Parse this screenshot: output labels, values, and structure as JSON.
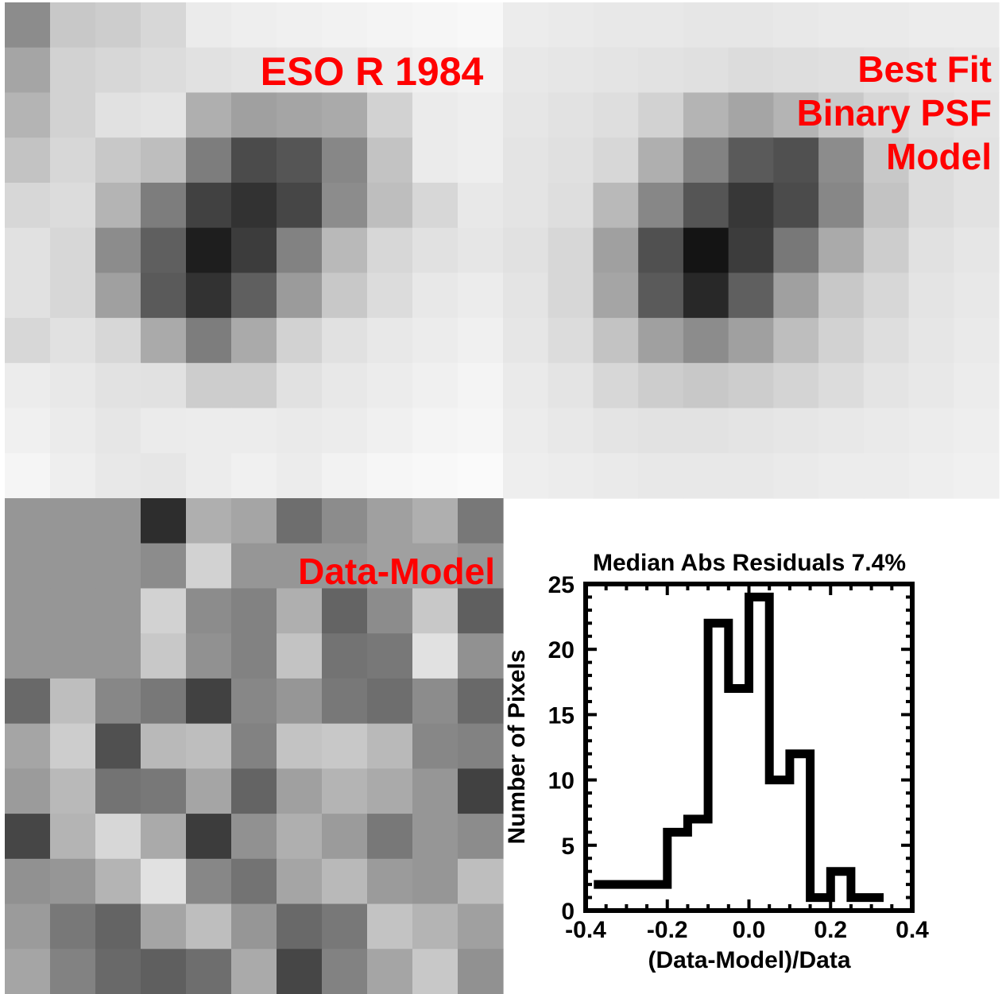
{
  "labels": {
    "data_panel": "ESO R 1984",
    "model_panel": [
      "Best Fit",
      "Binary PSF",
      "Model"
    ],
    "residual_panel": "Data-Model"
  },
  "colors": {
    "label": "#ff0000",
    "axis": "#000000",
    "histogram": "#000000"
  },
  "images": {
    "data_image": [
      [
        140,
        200,
        205,
        215,
        235,
        238,
        240,
        242,
        244,
        246,
        248
      ],
      [
        165,
        210,
        215,
        220,
        225,
        228,
        230,
        232,
        236,
        240,
        242
      ],
      [
        180,
        210,
        225,
        228,
        175,
        160,
        165,
        170,
        210,
        235,
        238
      ],
      [
        195,
        215,
        200,
        190,
        125,
        75,
        85,
        135,
        195,
        235,
        238
      ],
      [
        215,
        220,
        180,
        125,
        65,
        50,
        70,
        140,
        190,
        215,
        232
      ],
      [
        225,
        215,
        140,
        95,
        30,
        60,
        130,
        185,
        215,
        225,
        230
      ],
      [
        225,
        215,
        160,
        90,
        50,
        95,
        155,
        200,
        220,
        232,
        236
      ],
      [
        215,
        225,
        215,
        170,
        125,
        170,
        210,
        225,
        232,
        236,
        240
      ],
      [
        236,
        232,
        226,
        225,
        205,
        205,
        225,
        232,
        236,
        240,
        244
      ],
      [
        240,
        235,
        230,
        235,
        236,
        236,
        234,
        236,
        240,
        244,
        246
      ],
      [
        245,
        238,
        232,
        230,
        236,
        240,
        236,
        242,
        246,
        248,
        250
      ]
    ],
    "model_image": [
      [
        236,
        234,
        232,
        232,
        230,
        230,
        232,
        234,
        234,
        236,
        236
      ],
      [
        232,
        230,
        228,
        226,
        224,
        220,
        222,
        224,
        226,
        228,
        230
      ],
      [
        230,
        226,
        222,
        210,
        180,
        165,
        180,
        200,
        215,
        224,
        228
      ],
      [
        228,
        224,
        215,
        175,
        130,
        90,
        80,
        140,
        200,
        220,
        226
      ],
      [
        228,
        222,
        185,
        135,
        85,
        55,
        75,
        135,
        195,
        220,
        226
      ],
      [
        225,
        215,
        160,
        80,
        20,
        60,
        120,
        170,
        205,
        225,
        230
      ],
      [
        228,
        215,
        165,
        90,
        40,
        95,
        160,
        200,
        215,
        228,
        232
      ],
      [
        230,
        220,
        195,
        160,
        140,
        160,
        190,
        210,
        222,
        230,
        234
      ],
      [
        234,
        228,
        215,
        205,
        200,
        205,
        212,
        220,
        228,
        232,
        236
      ],
      [
        236,
        232,
        228,
        226,
        226,
        228,
        230,
        232,
        234,
        236,
        238
      ],
      [
        238,
        236,
        234,
        232,
        232,
        232,
        234,
        236,
        236,
        238,
        240
      ]
    ],
    "residual_image": [
      [
        150,
        150,
        150,
        45,
        175,
        165,
        110,
        140,
        160,
        175,
        120
      ],
      [
        150,
        150,
        150,
        140,
        210,
        150,
        150,
        150,
        160,
        160,
        150
      ],
      [
        150,
        150,
        150,
        210,
        140,
        130,
        175,
        100,
        140,
        200,
        95
      ],
      [
        150,
        150,
        150,
        200,
        145,
        130,
        195,
        115,
        120,
        225,
        145
      ],
      [
        105,
        190,
        135,
        120,
        65,
        135,
        150,
        120,
        110,
        140,
        105
      ],
      [
        165,
        205,
        80,
        185,
        190,
        130,
        195,
        200,
        185,
        135,
        130
      ],
      [
        155,
        185,
        115,
        120,
        165,
        100,
        160,
        180,
        170,
        150,
        65
      ],
      [
        70,
        180,
        215,
        170,
        60,
        145,
        175,
        155,
        120,
        150,
        140
      ],
      [
        145,
        150,
        180,
        225,
        135,
        115,
        165,
        185,
        155,
        150,
        190
      ],
      [
        155,
        120,
        100,
        165,
        190,
        150,
        105,
        120,
        195,
        180,
        160
      ],
      [
        165,
        130,
        105,
        95,
        110,
        170,
        70,
        130,
        165,
        200,
        145
      ]
    ]
  },
  "chart_data": {
    "type": "histogram",
    "title": "Median Abs Residuals 7.4%",
    "xlabel": "(Data-Model)/Data",
    "ylabel": "Number of Pixels",
    "xlim": [
      -0.4,
      0.4
    ],
    "ylim": [
      0,
      25
    ],
    "xticks": [
      -0.4,
      -0.2,
      0.0,
      0.2,
      0.4
    ],
    "xtick_labels": [
      "-0.4",
      "-0.2",
      "0.0",
      "0.2",
      "0.4"
    ],
    "yticks": [
      0,
      5,
      10,
      15,
      20,
      25
    ],
    "ytick_labels": [
      "0",
      "5",
      "10",
      "15",
      "20",
      "25"
    ],
    "bin_edges": [
      -0.38,
      -0.33,
      -0.28,
      -0.23,
      -0.2,
      -0.15,
      -0.1,
      -0.05,
      0.0,
      0.05,
      0.1,
      0.15,
      0.2,
      0.25,
      0.3,
      0.33
    ],
    "counts": [
      2,
      2,
      2,
      2,
      6,
      7,
      22,
      17,
      24,
      10,
      12,
      1,
      3,
      1,
      1
    ]
  }
}
